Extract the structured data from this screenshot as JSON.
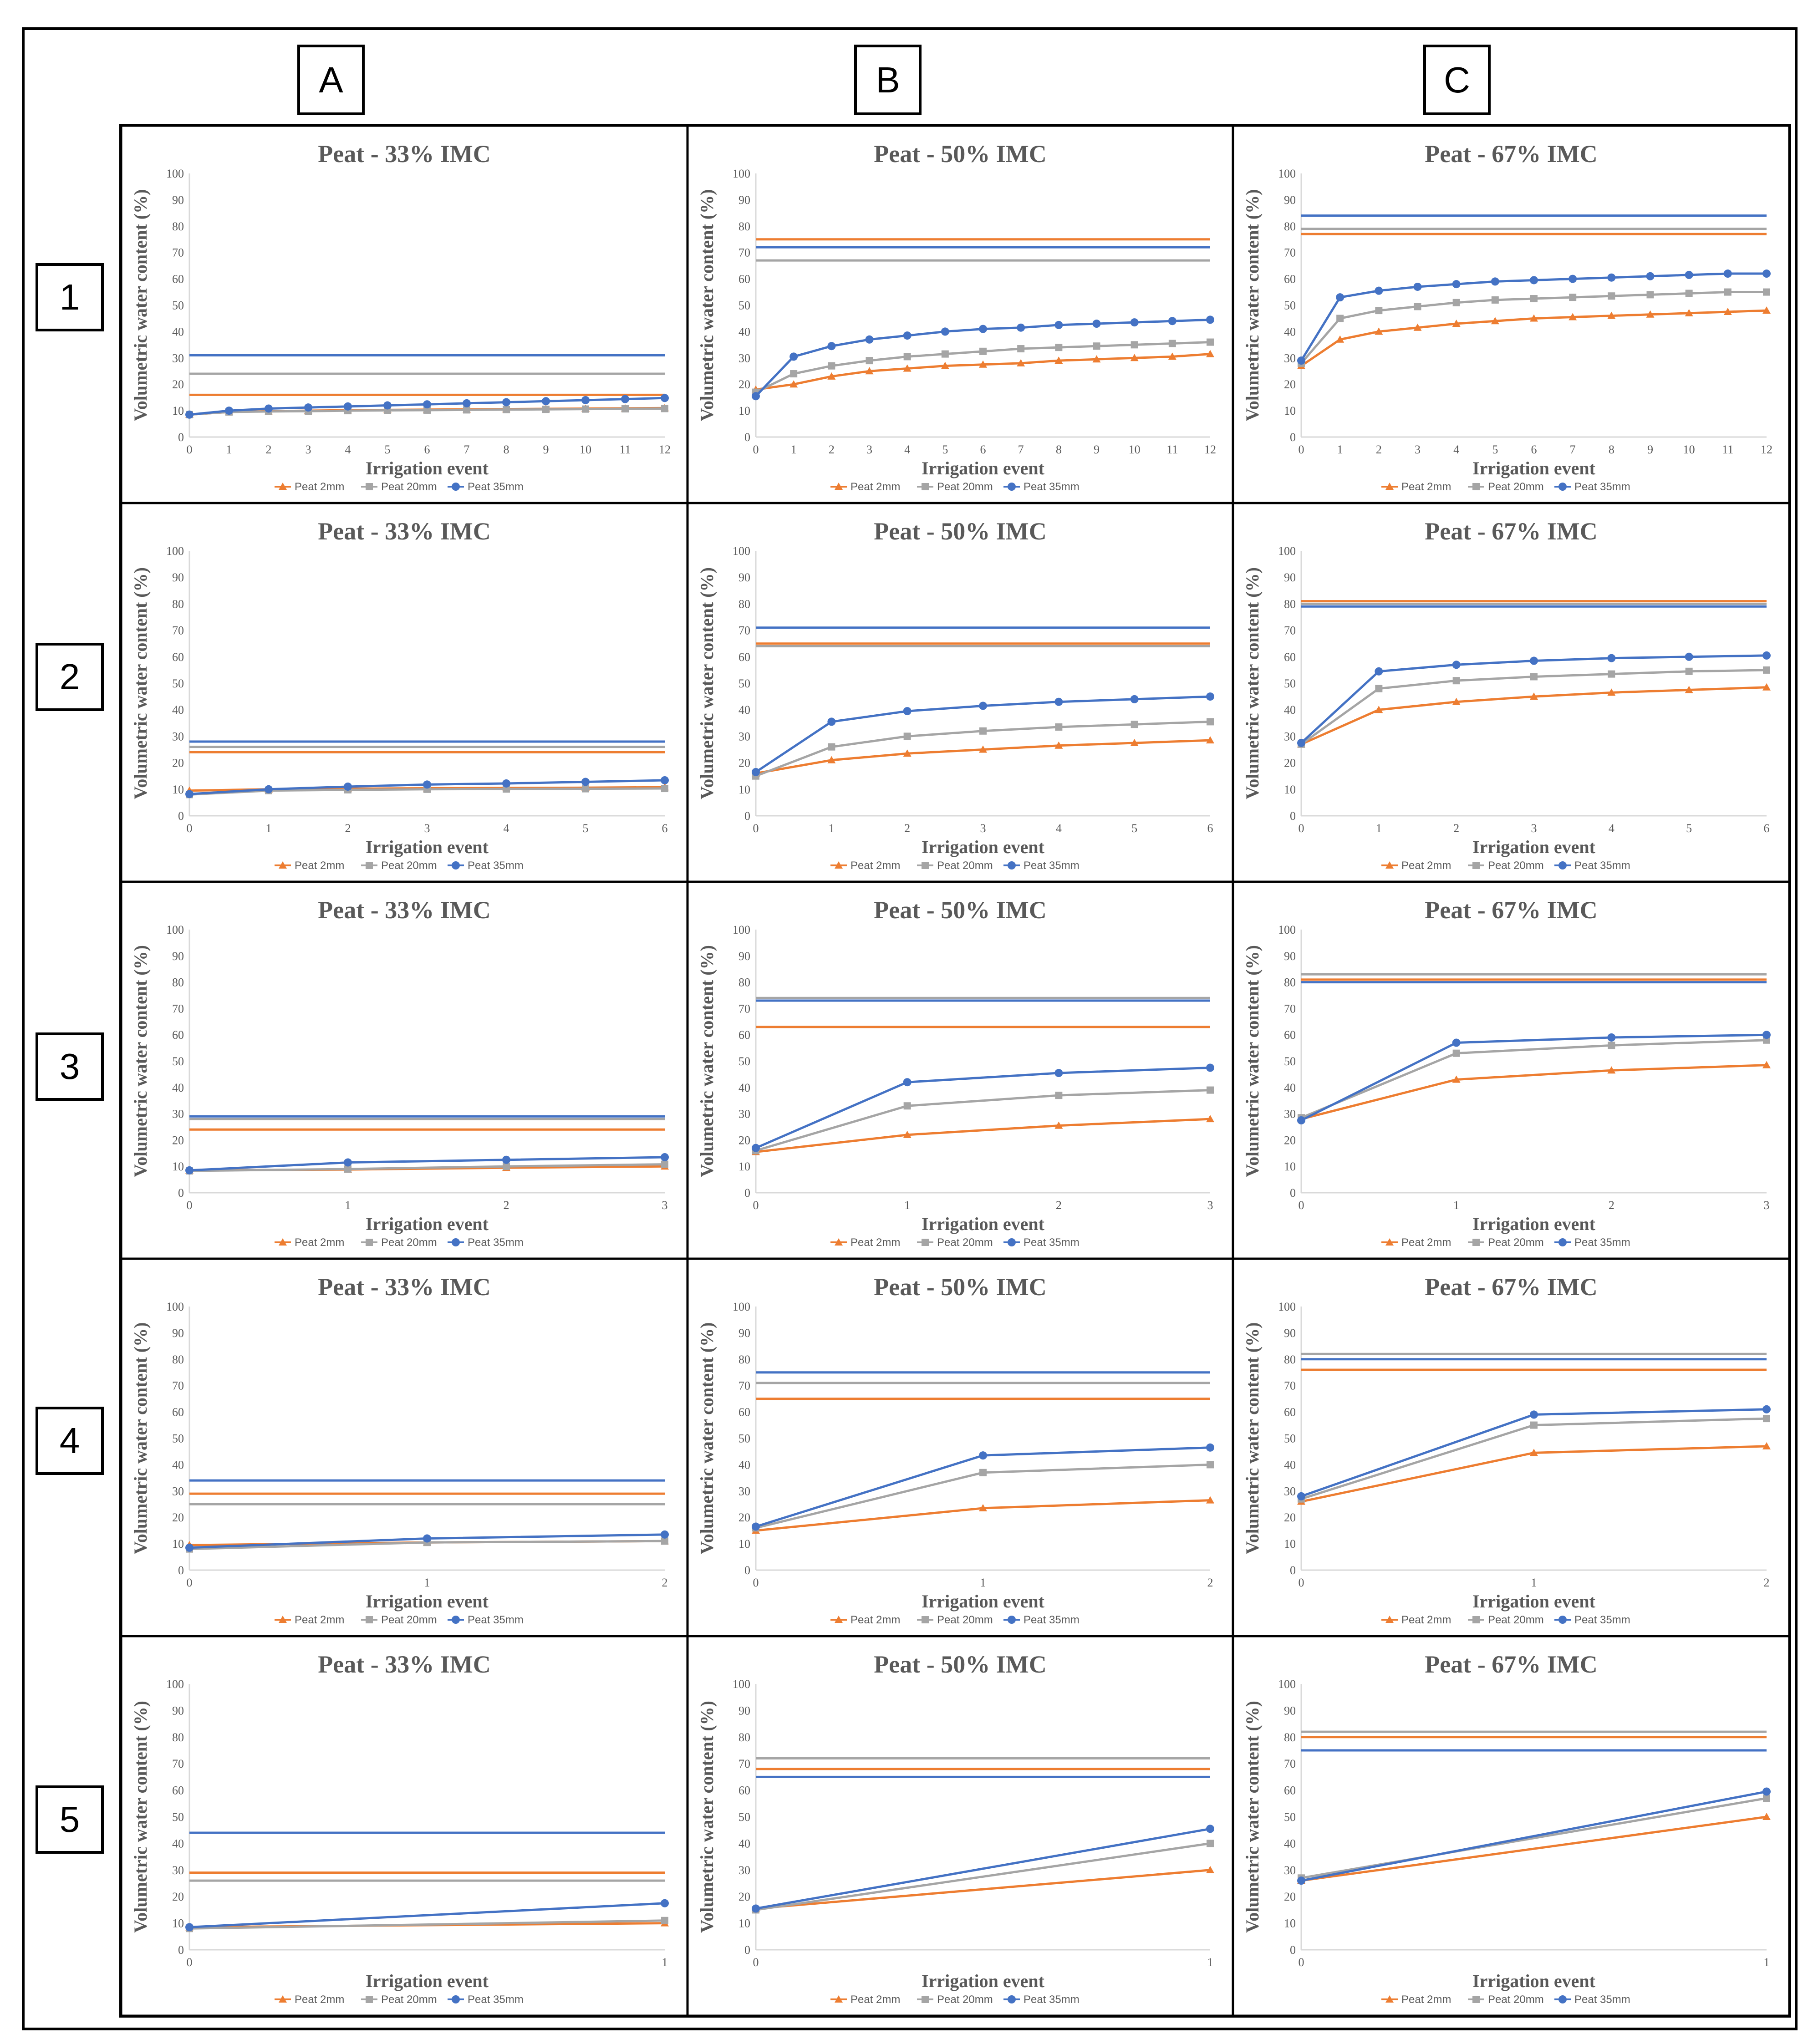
{
  "figure": {
    "column_labels": [
      "A",
      "B",
      "C"
    ],
    "row_labels": [
      "1",
      "2",
      "3",
      "4",
      "5"
    ]
  },
  "colors": {
    "Peat 2mm": "#ED7D31",
    "Peat 20mm": "#A5A5A5",
    "Peat 35mm": "#4472C4",
    "text": "#595959",
    "axis": "#D9D9D9"
  },
  "chart_data": [
    {
      "type": "line",
      "row": "1",
      "column": "A",
      "title": "Peat - 33% IMC",
      "xlabel": "Irrigation event",
      "ylabel": "Volumetric water content (%)",
      "x": [
        0,
        1,
        2,
        3,
        4,
        5,
        6,
        7,
        8,
        9,
        10,
        11,
        12
      ],
      "ylim": [
        0,
        100
      ],
      "yticks": [
        0,
        10,
        20,
        30,
        40,
        50,
        60,
        70,
        80,
        90,
        100
      ],
      "legend": "bottom",
      "series": [
        {
          "name": "Peat 2mm",
          "values": [
            8.5,
            9.5,
            9.8,
            10,
            10.2,
            10.3,
            10.4,
            10.5,
            10.6,
            10.7,
            10.8,
            10.9,
            11
          ],
          "reference_line": 16
        },
        {
          "name": "Peat 20mm",
          "values": [
            8.5,
            9.5,
            9.7,
            9.8,
            10,
            10.1,
            10.2,
            10.3,
            10.4,
            10.5,
            10.6,
            10.7,
            10.8
          ],
          "reference_line": 24
        },
        {
          "name": "Peat 35mm",
          "values": [
            8.5,
            10,
            10.8,
            11.2,
            11.6,
            12,
            12.4,
            12.8,
            13.2,
            13.6,
            14,
            14.4,
            14.8
          ],
          "reference_line": 31
        }
      ]
    },
    {
      "type": "line",
      "row": "1",
      "column": "B",
      "title": "Peat - 50% IMC",
      "xlabel": "Irrigation event",
      "ylabel": "Volumetric water content (%)",
      "x": [
        0,
        1,
        2,
        3,
        4,
        5,
        6,
        7,
        8,
        9,
        10,
        11,
        12
      ],
      "ylim": [
        0,
        100
      ],
      "yticks": [
        0,
        10,
        20,
        30,
        40,
        50,
        60,
        70,
        80,
        90,
        100
      ],
      "legend": "bottom",
      "series": [
        {
          "name": "Peat 2mm",
          "values": [
            18,
            20,
            23,
            25,
            26,
            27,
            27.5,
            28,
            29,
            29.5,
            30,
            30.5,
            31.5
          ],
          "reference_line": 75
        },
        {
          "name": "Peat 20mm",
          "values": [
            17,
            24,
            27,
            29,
            30.5,
            31.5,
            32.5,
            33.5,
            34,
            34.5,
            35,
            35.5,
            36
          ],
          "reference_line": 67
        },
        {
          "name": "Peat 35mm",
          "values": [
            15.5,
            30.5,
            34.5,
            37,
            38.5,
            40,
            41,
            41.5,
            42.5,
            43,
            43.5,
            44,
            44.5
          ],
          "reference_line": 72
        }
      ]
    },
    {
      "type": "line",
      "row": "1",
      "column": "C",
      "title": "Peat - 67% IMC",
      "xlabel": "Irrigation event",
      "ylabel": "Volumetric water content (%)",
      "x": [
        0,
        1,
        2,
        3,
        4,
        5,
        6,
        7,
        8,
        9,
        10,
        11,
        12
      ],
      "ylim": [
        0,
        100
      ],
      "yticks": [
        0,
        10,
        20,
        30,
        40,
        50,
        60,
        70,
        80,
        90,
        100
      ],
      "legend": "bottom",
      "series": [
        {
          "name": "Peat 2mm",
          "values": [
            27,
            37,
            40,
            41.5,
            43,
            44,
            45,
            45.5,
            46,
            46.5,
            47,
            47.5,
            48
          ],
          "reference_line": 77
        },
        {
          "name": "Peat 20mm",
          "values": [
            28,
            45,
            48,
            49.5,
            51,
            52,
            52.5,
            53,
            53.5,
            54,
            54.5,
            55,
            55
          ],
          "reference_line": 79
        },
        {
          "name": "Peat 35mm",
          "values": [
            29,
            53,
            55.5,
            57,
            58,
            59,
            59.5,
            60,
            60.5,
            61,
            61.5,
            62,
            62
          ],
          "reference_line": 84
        }
      ]
    },
    {
      "type": "line",
      "row": "2",
      "column": "A",
      "title": "Peat - 33% IMC",
      "xlabel": "Irrigation event",
      "ylabel": "Volumetric water content (%)",
      "x": [
        0,
        1,
        2,
        3,
        4,
        5,
        6
      ],
      "ylim": [
        0,
        100
      ],
      "yticks": [
        0,
        10,
        20,
        30,
        40,
        50,
        60,
        70,
        80,
        90,
        100
      ],
      "legend": "bottom",
      "series": [
        {
          "name": "Peat 2mm",
          "values": [
            9.5,
            10,
            10.2,
            10.4,
            10.5,
            10.6,
            10.8
          ],
          "reference_line": 24
        },
        {
          "name": "Peat 20mm",
          "values": [
            8,
            9.5,
            9.8,
            10,
            10.1,
            10.2,
            10.3
          ],
          "reference_line": 26
        },
        {
          "name": "Peat 35mm",
          "values": [
            8.2,
            10,
            11,
            11.8,
            12.2,
            12.8,
            13.4
          ],
          "reference_line": 28
        }
      ]
    },
    {
      "type": "line",
      "row": "2",
      "column": "B",
      "title": "Peat - 50% IMC",
      "xlabel": "Irrigation event",
      "ylabel": "Volumetric water content (%)",
      "x": [
        0,
        1,
        2,
        3,
        4,
        5,
        6
      ],
      "ylim": [
        0,
        100
      ],
      "yticks": [
        0,
        10,
        20,
        30,
        40,
        50,
        60,
        70,
        80,
        90,
        100
      ],
      "legend": "bottom",
      "series": [
        {
          "name": "Peat 2mm",
          "values": [
            16,
            21,
            23.5,
            25,
            26.5,
            27.5,
            28.5
          ],
          "reference_line": 65
        },
        {
          "name": "Peat 20mm",
          "values": [
            15,
            26,
            30,
            32,
            33.5,
            34.5,
            35.5
          ],
          "reference_line": 64
        },
        {
          "name": "Peat 35mm",
          "values": [
            16.5,
            35.5,
            39.5,
            41.5,
            43,
            44,
            45
          ],
          "reference_line": 71
        }
      ]
    },
    {
      "type": "line",
      "row": "2",
      "column": "C",
      "title": "Peat - 67% IMC",
      "xlabel": "Irrigation event",
      "ylabel": "Volumetric water content (%)",
      "x": [
        0,
        1,
        2,
        3,
        4,
        5,
        6
      ],
      "ylim": [
        0,
        100
      ],
      "yticks": [
        0,
        10,
        20,
        30,
        40,
        50,
        60,
        70,
        80,
        90,
        100
      ],
      "legend": "bottom",
      "series": [
        {
          "name": "Peat 2mm",
          "values": [
            27,
            40,
            43,
            45,
            46.5,
            47.5,
            48.5
          ],
          "reference_line": 81
        },
        {
          "name": "Peat 20mm",
          "values": [
            27,
            48,
            51,
            52.5,
            53.5,
            54.5,
            55
          ],
          "reference_line": 80
        },
        {
          "name": "Peat 35mm",
          "values": [
            27.5,
            54.5,
            57,
            58.5,
            59.5,
            60,
            60.5
          ],
          "reference_line": 79
        }
      ]
    },
    {
      "type": "line",
      "row": "3",
      "column": "A",
      "title": "Peat - 33% IMC",
      "xlabel": "Irrigation event",
      "ylabel": "Volumetric water content (%)",
      "x": [
        0,
        1,
        2,
        3
      ],
      "ylim": [
        0,
        100
      ],
      "yticks": [
        0,
        10,
        20,
        30,
        40,
        50,
        60,
        70,
        80,
        90,
        100
      ],
      "legend": "bottom",
      "series": [
        {
          "name": "Peat 2mm",
          "values": [
            8.5,
            8.8,
            9.5,
            10
          ],
          "reference_line": 24
        },
        {
          "name": "Peat 20mm",
          "values": [
            8.3,
            9,
            10,
            10.8
          ],
          "reference_line": 28
        },
        {
          "name": "Peat 35mm",
          "values": [
            8.5,
            11.5,
            12.5,
            13.5
          ],
          "reference_line": 29
        }
      ]
    },
    {
      "type": "line",
      "row": "3",
      "column": "B",
      "title": "Peat - 50% IMC",
      "xlabel": "Irrigation event",
      "ylabel": "Volumetric water content (%)",
      "x": [
        0,
        1,
        2,
        3
      ],
      "ylim": [
        0,
        100
      ],
      "yticks": [
        0,
        10,
        20,
        30,
        40,
        50,
        60,
        70,
        80,
        90,
        100
      ],
      "legend": "bottom",
      "series": [
        {
          "name": "Peat 2mm",
          "values": [
            15.5,
            22,
            25.5,
            28
          ],
          "reference_line": 63
        },
        {
          "name": "Peat 20mm",
          "values": [
            16,
            33,
            37,
            39
          ],
          "reference_line": 74
        },
        {
          "name": "Peat 35mm",
          "values": [
            17,
            42,
            45.5,
            47.5
          ],
          "reference_line": 73
        }
      ]
    },
    {
      "type": "line",
      "row": "3",
      "column": "C",
      "title": "Peat - 67% IMC",
      "xlabel": "Irrigation event",
      "ylabel": "Volumetric water content (%)",
      "x": [
        0,
        1,
        2,
        3
      ],
      "ylim": [
        0,
        100
      ],
      "yticks": [
        0,
        10,
        20,
        30,
        40,
        50,
        60,
        70,
        80,
        90,
        100
      ],
      "legend": "bottom",
      "series": [
        {
          "name": "Peat 2mm",
          "values": [
            28,
            43,
            46.5,
            48.5
          ],
          "reference_line": 81
        },
        {
          "name": "Peat 20mm",
          "values": [
            28.5,
            53,
            56,
            58
          ],
          "reference_line": 83
        },
        {
          "name": "Peat 35mm",
          "values": [
            27.5,
            57,
            59,
            60
          ],
          "reference_line": 80
        }
      ]
    },
    {
      "type": "line",
      "row": "4",
      "column": "A",
      "title": "Peat - 33% IMC",
      "xlabel": "Irrigation event",
      "ylabel": "Volumetric water content (%)",
      "x": [
        0,
        1,
        2
      ],
      "ylim": [
        0,
        100
      ],
      "yticks": [
        0,
        10,
        20,
        30,
        40,
        50,
        60,
        70,
        80,
        90,
        100
      ],
      "legend": "bottom",
      "series": [
        {
          "name": "Peat 2mm",
          "values": [
            9.5,
            10.5,
            11
          ],
          "reference_line": 29
        },
        {
          "name": "Peat 20mm",
          "values": [
            8,
            10.5,
            11
          ],
          "reference_line": 25
        },
        {
          "name": "Peat 35mm",
          "values": [
            8.5,
            12,
            13.5
          ],
          "reference_line": 34
        }
      ]
    },
    {
      "type": "line",
      "row": "4",
      "column": "B",
      "title": "Peat - 50% IMC",
      "xlabel": "Irrigation event",
      "ylabel": "Volumetric water content (%)",
      "x": [
        0,
        1,
        2
      ],
      "ylim": [
        0,
        100
      ],
      "yticks": [
        0,
        10,
        20,
        30,
        40,
        50,
        60,
        70,
        80,
        90,
        100
      ],
      "legend": "bottom",
      "series": [
        {
          "name": "Peat 2mm",
          "values": [
            15,
            23.5,
            26.5
          ],
          "reference_line": 65
        },
        {
          "name": "Peat 20mm",
          "values": [
            16,
            37,
            40
          ],
          "reference_line": 71
        },
        {
          "name": "Peat 35mm",
          "values": [
            16.5,
            43.5,
            46.5
          ],
          "reference_line": 75
        }
      ]
    },
    {
      "type": "line",
      "row": "4",
      "column": "C",
      "title": "Peat - 67% IMC",
      "xlabel": "Irrigation event",
      "ylabel": "Volumetric water content (%)",
      "x": [
        0,
        1,
        2
      ],
      "ylim": [
        0,
        100
      ],
      "yticks": [
        0,
        10,
        20,
        30,
        40,
        50,
        60,
        70,
        80,
        90,
        100
      ],
      "legend": "bottom",
      "series": [
        {
          "name": "Peat 2mm",
          "values": [
            26,
            44.5,
            47
          ],
          "reference_line": 76
        },
        {
          "name": "Peat 20mm",
          "values": [
            27,
            55,
            57.5
          ],
          "reference_line": 82
        },
        {
          "name": "Peat 35mm",
          "values": [
            28,
            59,
            61
          ],
          "reference_line": 80
        }
      ]
    },
    {
      "type": "line",
      "row": "5",
      "column": "A",
      "title": "Peat - 33% IMC",
      "xlabel": "Irrigation event",
      "ylabel": "Volumetric water content (%)",
      "x": [
        0,
        1
      ],
      "ylim": [
        0,
        100
      ],
      "yticks": [
        0,
        10,
        20,
        30,
        40,
        50,
        60,
        70,
        80,
        90,
        100
      ],
      "legend": "bottom",
      "series": [
        {
          "name": "Peat 2mm",
          "values": [
            8.5,
            10
          ],
          "reference_line": 29
        },
        {
          "name": "Peat 20mm",
          "values": [
            8,
            11
          ],
          "reference_line": 26
        },
        {
          "name": "Peat 35mm",
          "values": [
            8.5,
            17.5
          ],
          "reference_line": 44
        }
      ]
    },
    {
      "type": "line",
      "row": "5",
      "column": "B",
      "title": "Peat - 50% IMC",
      "xlabel": "Irrigation event",
      "ylabel": "Volumetric water content (%)",
      "x": [
        0,
        1
      ],
      "ylim": [
        0,
        100
      ],
      "yticks": [
        0,
        10,
        20,
        30,
        40,
        50,
        60,
        70,
        80,
        90,
        100
      ],
      "legend": "bottom",
      "series": [
        {
          "name": "Peat 2mm",
          "values": [
            15.5,
            30
          ],
          "reference_line": 68
        },
        {
          "name": "Peat 20mm",
          "values": [
            15,
            40
          ],
          "reference_line": 72
        },
        {
          "name": "Peat 35mm",
          "values": [
            15.5,
            45.5
          ],
          "reference_line": 65
        }
      ]
    },
    {
      "type": "line",
      "row": "5",
      "column": "C",
      "title": "Peat - 67% IMC",
      "xlabel": "Irrigation event",
      "ylabel": "Volumetric water content (%)",
      "x": [
        0,
        1
      ],
      "ylim": [
        0,
        100
      ],
      "yticks": [
        0,
        10,
        20,
        30,
        40,
        50,
        60,
        70,
        80,
        90,
        100
      ],
      "legend": "bottom",
      "series": [
        {
          "name": "Peat 2mm",
          "values": [
            26,
            50
          ],
          "reference_line": 80
        },
        {
          "name": "Peat 20mm",
          "values": [
            27,
            57
          ],
          "reference_line": 82
        },
        {
          "name": "Peat 35mm",
          "values": [
            26,
            59.5
          ],
          "reference_line": 75
        }
      ]
    }
  ]
}
